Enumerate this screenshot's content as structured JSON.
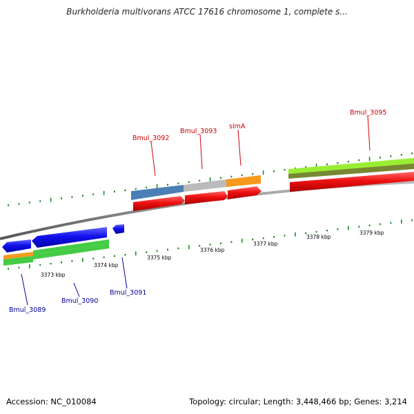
{
  "title": "Burkholderia multivorans ATCC 17616 chromosome 1, complete s...",
  "footer": {
    "accession": "Accession: NC_010084",
    "summary": "Topology: circular; Length: 3,448,466 bp; Genes: 3,214"
  },
  "scale_labels": [
    "3373 kbp",
    "3374 kbp",
    "3375 kbp",
    "3376 kbp",
    "3377 kbp",
    "3378 kbp",
    "3379 kbp"
  ],
  "genes_forward": [
    {
      "name": "Bmul_3092",
      "color": "#cc0000"
    },
    {
      "name": "Bmul_3093",
      "color": "#cc0000"
    },
    {
      "name": "slmA",
      "color": "#cc0000"
    },
    {
      "name": "Bmul_3095",
      "color": "#cc0000"
    }
  ],
  "genes_reverse": [
    {
      "name": "Bmul_3089",
      "color": "#000099"
    },
    {
      "name": "Bmul_3090",
      "color": "#000099"
    },
    {
      "name": "Bmul_3091",
      "color": "#000099"
    }
  ],
  "colors": {
    "forward_gene": "#ee1111",
    "reverse_gene": "#1111ee",
    "cog_blue": "#4a7fb5",
    "cog_gray": "#bbbbbb",
    "cog_orange": "#f59a1e",
    "cog_lime": "#99ee33",
    "cog_olive": "#778833",
    "cog_green": "#44cc44",
    "backbone": "#888888",
    "tick": "#228822"
  }
}
